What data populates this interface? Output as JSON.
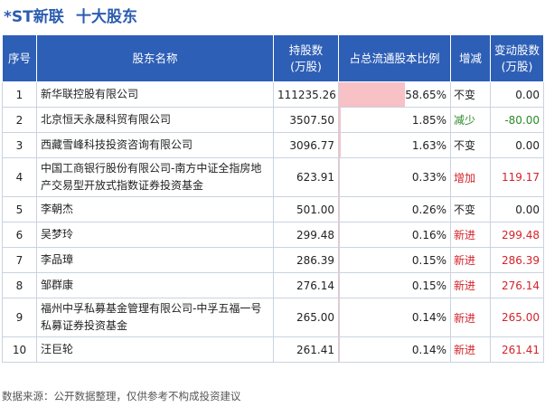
{
  "header": {
    "stock": "*ST新联",
    "section": "十大股东"
  },
  "columns": [
    "序号",
    "股东名称",
    "持股数\n(万股)",
    "占总流通股本比例",
    "增减",
    "变动股数\n(万股)"
  ],
  "rows": [
    {
      "idx": "1",
      "name": "新华联控股有限公司",
      "shares": "111235.26",
      "pct": "58.65%",
      "pct_value": 58.65,
      "change": "不变",
      "change_type": "same",
      "delta": "0.00"
    },
    {
      "idx": "2",
      "name": "北京恒天永晟科贸有限公司",
      "shares": "3507.50",
      "pct": "1.85%",
      "pct_value": 1.85,
      "change": "减少",
      "change_type": "down",
      "delta": "-80.00"
    },
    {
      "idx": "3",
      "name": "西藏雪峰科技投资咨询有限公司",
      "shares": "3096.77",
      "pct": "1.63%",
      "pct_value": 1.63,
      "change": "不变",
      "change_type": "same",
      "delta": "0.00"
    },
    {
      "idx": "4",
      "name": "中国工商银行股份有限公司-南方中证全指房地产交易型开放式指数证券投资基金",
      "shares": "623.91",
      "pct": "0.33%",
      "pct_value": 0.33,
      "change": "增加",
      "change_type": "up",
      "delta": "119.17"
    },
    {
      "idx": "5",
      "name": "李朝杰",
      "shares": "501.00",
      "pct": "0.26%",
      "pct_value": 0.26,
      "change": "不变",
      "change_type": "same",
      "delta": "0.00"
    },
    {
      "idx": "6",
      "name": "吴梦玲",
      "shares": "299.48",
      "pct": "0.16%",
      "pct_value": 0.16,
      "change": "新进",
      "change_type": "new",
      "delta": "299.48"
    },
    {
      "idx": "7",
      "name": "李品璋",
      "shares": "286.39",
      "pct": "0.15%",
      "pct_value": 0.15,
      "change": "新进",
      "change_type": "new",
      "delta": "286.39"
    },
    {
      "idx": "8",
      "name": "邹群康",
      "shares": "276.14",
      "pct": "0.15%",
      "pct_value": 0.15,
      "change": "新进",
      "change_type": "new",
      "delta": "276.14"
    },
    {
      "idx": "9",
      "name": "福州中孚私募基金管理有限公司-中孚五福一号私募证券投资基金",
      "shares": "265.00",
      "pct": "0.14%",
      "pct_value": 0.14,
      "change": "新进",
      "change_type": "new",
      "delta": "265.00"
    },
    {
      "idx": "10",
      "name": "汪巨轮",
      "shares": "261.41",
      "pct": "0.14%",
      "pct_value": 0.14,
      "change": "新进",
      "change_type": "new",
      "delta": "261.41"
    }
  ],
  "footer": "数据来源：公开数据整理，仅供参考不构成投资建议",
  "colors": {
    "header_bg": "#2e5fb6",
    "title": "#2b5cb0",
    "bar": "#f7c1c6",
    "up": "#d4232b",
    "down": "#2a8a2a"
  }
}
